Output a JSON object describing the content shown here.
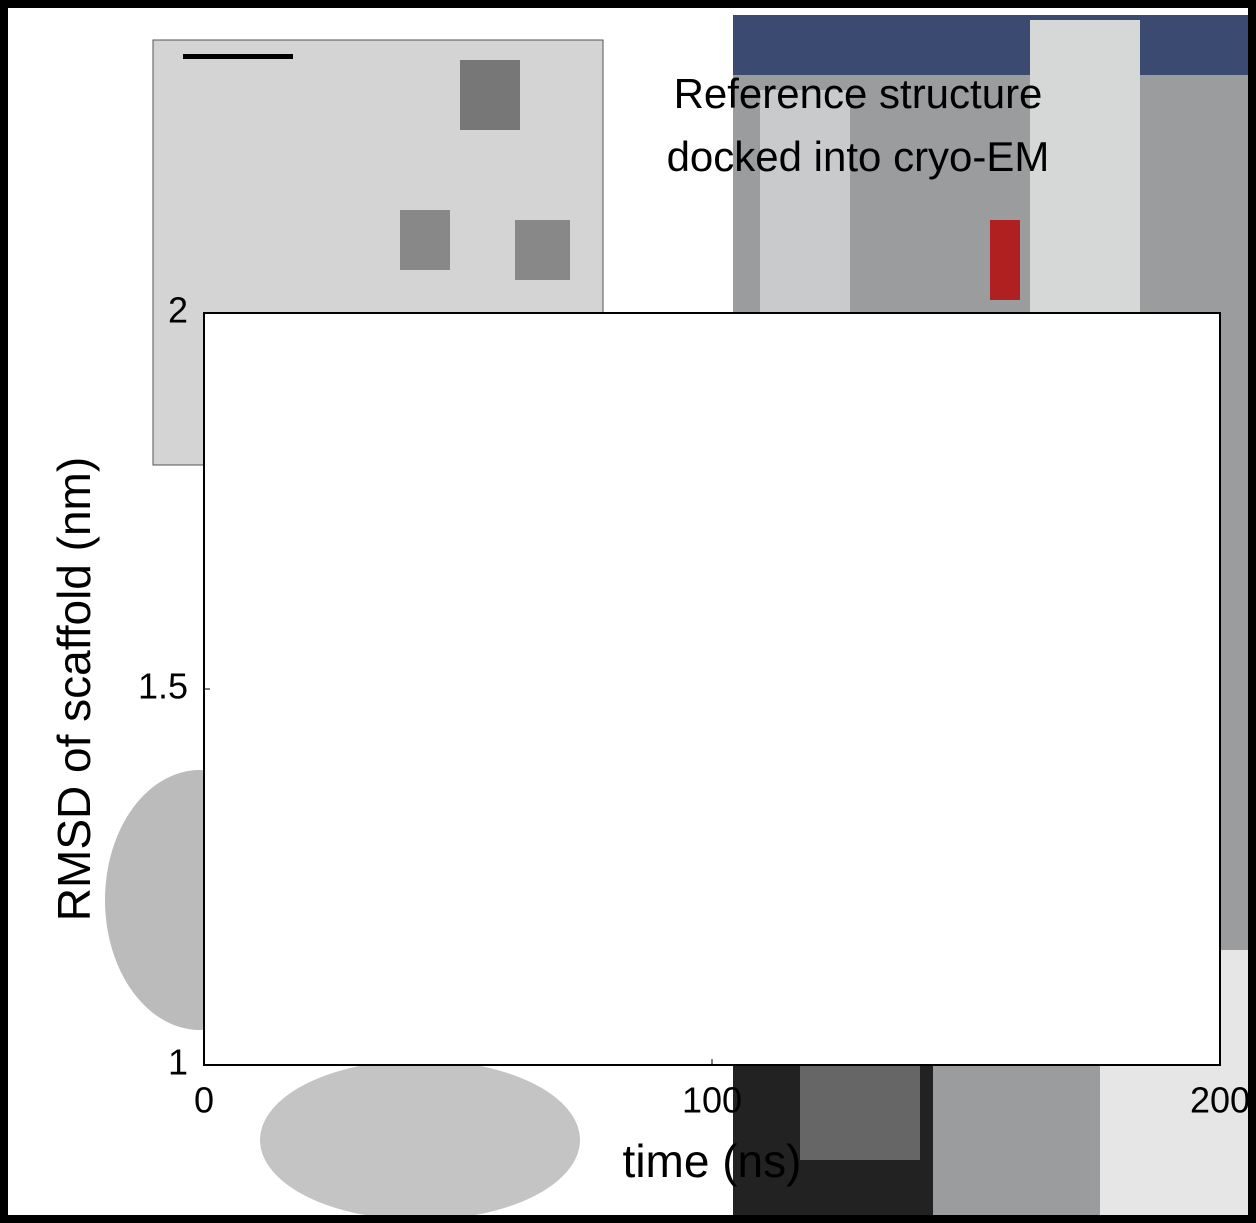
{
  "chart_data": {
    "type": "line",
    "annotation": [
      "Reference structure",
      "docked into cryo-EM"
    ],
    "xlabel": "time (ns)",
    "ylabel": "RMSD of scaffold (nm)",
    "xlim": [
      0,
      200
    ],
    "xticks": [
      0,
      100,
      200
    ],
    "ylim": [
      1,
      2
    ],
    "yticks": [
      1,
      1.5,
      2
    ],
    "series": []
  }
}
